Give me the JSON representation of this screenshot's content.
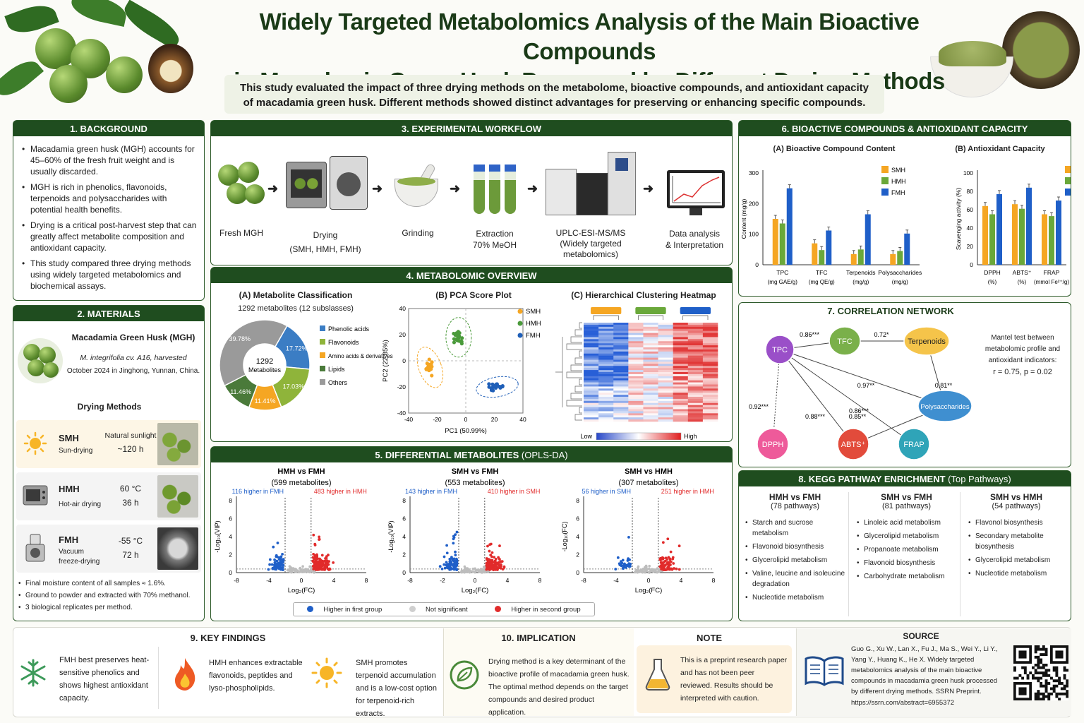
{
  "title": {
    "line1": "Widely Targeted Metabolomics Analysis of the Main Bioactive Compounds",
    "line2": "in Macadamia Green Husk Processed by Different Drying Methods"
  },
  "summary": {
    "line1": "This study evaluated the impact of three drying methods on the metabolome, bioactive compounds, and antioxidant capacity",
    "line2": "of macadamia green husk. Different methods showed distinct advantages for preserving or enhancing specific compounds."
  },
  "background": {
    "heading": "1. BACKGROUND",
    "bullets": [
      "Macadamia green husk (MGH) accounts for 45–60% of the fresh fruit weight and is usually discarded.",
      "MGH is rich in phenolics, flavonoids, terpenoids and polysaccharides with potential health benefits.",
      "Drying is a critical post-harvest step that can greatly affect metabolite composition and antioxidant capacity.",
      "This study compared three drying methods using widely targeted metabolomics and biochemical assays."
    ]
  },
  "materials": {
    "heading": "2. MATERIALS",
    "sample_title": "Macadamia Green Husk (MGH)",
    "sample_line1": "M. integrifolia cv. A16, harvested",
    "sample_line2": "October 2024 in Jinghong, Yunnan, China.",
    "drying_title": "Drying Methods",
    "methods": [
      {
        "code": "SMH",
        "name": "Sun-drying",
        "cond1": "Natural sunlight",
        "cond2": "~120 h"
      },
      {
        "code": "HMH",
        "name": "Hot-air drying",
        "cond1": "60 °C",
        "cond2": "36 h"
      },
      {
        "code": "FMH",
        "name": "Vacuum freeze-drying",
        "cond1": "-55 °C",
        "cond2": "72 h"
      }
    ],
    "notes": [
      "Final moisture content of all samples ≈ 1.6%.",
      "Ground to powder and extracted with 70% methanol.",
      "3 biological replicates per method."
    ]
  },
  "workflow": {
    "heading": "3. EXPERIMENTAL WORKFLOW",
    "steps": [
      {
        "l1": "Fresh MGH",
        "l2": "",
        "l3": ""
      },
      {
        "l1": "Drying",
        "l2": "(SMH, HMH, FMH)",
        "l3": ""
      },
      {
        "l1": "Grinding",
        "l2": "",
        "l3": ""
      },
      {
        "l1": "Extraction",
        "l2": "70% MeOH",
        "l3": ""
      },
      {
        "l1": "UPLC-ESI-MS/MS",
        "l2": "(Widely targeted",
        "l3": "metabolomics)"
      },
      {
        "l1": "Data analysis",
        "l2": "& Interpretation",
        "l3": ""
      }
    ]
  },
  "overview": {
    "heading": "4. METABOLOMIC OVERVIEW",
    "a_title": "(A) Metabolite Classification",
    "a_sub": "1292 metabolites (12 subslasses)",
    "center1": "1292",
    "center2": "Metabolites",
    "b_title": "(B) PCA Score Plot",
    "c_title": "(C) Hierarchical Clustering Heatmap",
    "c_low": "Low",
    "c_high": "High"
  },
  "differential": {
    "heading": "5. DIFFERENTIAL METABOLITES",
    "heading_suffix": "(OPLS-DA)",
    "legend": [
      "Higher in first group",
      "Not significant",
      "Higher in second group"
    ]
  },
  "bioactive": {
    "heading": "6. BIOACTIVE COMPOUNDS & ANTIOXIDANT CAPACITY",
    "a_title": "(A) Bioactive Compound Content",
    "b_title": "(B) Antioxidant Capacity"
  },
  "correlation": {
    "heading": "7. CORRELATION NETWORK",
    "note1": "Mantel test between",
    "note2": "metabolomic profile and",
    "note3": "antioxidant indicators:",
    "note4": "r = 0.75, p = 0.02",
    "nodes": [
      "TPC",
      "TFC",
      "Terpenoids",
      "Polysaccharides",
      "DPPH",
      "ABTS⁺",
      "FRAP"
    ],
    "edges": [
      "0.86***",
      "0.72*",
      "0.97**",
      "0.81**",
      "0.92***",
      "0.88***",
      "0.85**",
      "0.86***"
    ]
  },
  "kegg": {
    "heading": "8. KEGG PATHWAY ENRICHMENT",
    "heading_suffix": "(Top Pathways)",
    "groups": [
      {
        "title": "HMH vs FMH",
        "count": "(78 pathways)",
        "items": [
          "Starch and sucrose metabolism",
          "Flavonoid biosynthesis",
          "Glycerolipid metabolism",
          "Valine, leucine and isoleucine degradation",
          "Nucleotide metabolism"
        ]
      },
      {
        "title": "SMH vs FMH",
        "count": "(81 pathways)",
        "items": [
          "Linoleic acid metabolism",
          "Glycerolipid metabolism",
          "Propanoate metabolism",
          "Flavonoid biosynthesis",
          "Carbohydrate metabolism"
        ]
      },
      {
        "title": "SMH vs HMH",
        "count": "(54 pathways)",
        "items": [
          "Flavonol biosynthesis",
          "Secondary metabolite biosynthesis",
          "Glycerolipid metabolism",
          "Nucleotide metabolism"
        ]
      }
    ]
  },
  "findings": {
    "heading": "9. KEY FINDINGS",
    "f1": "FMH best preserves heat-sensitive phenolics and shows highest antioxidant capacity.",
    "f2": "HMH enhances extractable flavonoids, peptides and lyso-phospholipids.",
    "f3": "SMH promotes terpenoid accumulation and is a low-cost option for terpenoid-rich extracts."
  },
  "implication": {
    "heading": "10. IMPLICATION",
    "text": "Drying method is a key determinant of the bioactive profile of macadamia green husk. The optimal method depends on the target compounds and desired product application."
  },
  "note": {
    "heading": "NOTE",
    "text": "This is a preprint research paper and has not been peer reviewed. Results should be interpreted with caution."
  },
  "source": {
    "heading": "SOURCE",
    "text": "Guo G., Xu W., Lan X., Fu J., Ma S., Wei Y., Li Y., Yang Y., Huang K., He X. Widely targeted metabolomics analysis of the main bioactive compounds in macadamia green husk processed by different drying methods. SSRN Preprint.",
    "url": "https://ssrn.com/abstract=6955372"
  },
  "chart_data": [
    {
      "type": "pie",
      "title": "(A) Metabolite Classification",
      "labels": [
        "Phenolic acids",
        "Flavonoids",
        "Amino acids & derivatives",
        "Lipids",
        "Others"
      ],
      "values": [
        17.72,
        17.03,
        11.41,
        11.46,
        39.78
      ],
      "value_labels": [
        "17.72%",
        "17.03%",
        "11.41%",
        "11.46%",
        "39.78%"
      ],
      "colors": [
        "#3b7dc4",
        "#8fb43a",
        "#f5a623",
        "#4a7a3a",
        "#9a9a9a"
      ]
    },
    {
      "type": "scatter",
      "title": "(B) PCA Score Plot",
      "xlabel": "PC1 (50.99%)",
      "ylabel": "PC2 (22.85%)",
      "xlim": [
        -40,
        40
      ],
      "ylim": [
        -40,
        40
      ],
      "xticks": [
        "-40",
        "-20",
        "0",
        "20",
        "40"
      ],
      "yticks": [
        "40",
        "20",
        "0",
        "-20",
        "-40"
      ],
      "series": [
        {
          "name": "SMH",
          "color": "#f5a623",
          "center": [
            -25,
            -5
          ]
        },
        {
          "name": "HMH",
          "color": "#4a9a3a",
          "center": [
            -5,
            18
          ]
        },
        {
          "name": "FMH",
          "color": "#1f5fb8",
          "center": [
            22,
            -20
          ]
        }
      ]
    },
    {
      "type": "heatmap",
      "title": "(C) Hierarchical Clustering Heatmap",
      "columns": 9,
      "scale": [
        "Low",
        "High"
      ]
    },
    {
      "type": "scatter",
      "title": "HMH vs FMH",
      "subtitle": "(599 metabolites)",
      "left_label": "116 higher in FMH",
      "right_label": "483 higher in HMH",
      "down": 116,
      "up": 483,
      "xlabel": "Log₂(FC)",
      "ylabel": "-Log₁₀(VIP)",
      "xticks": [
        "-8",
        "-4",
        "0",
        "4",
        "8"
      ],
      "yticks": [
        "8",
        "6",
        "4",
        "2",
        "0"
      ]
    },
    {
      "type": "scatter",
      "title": "SMH vs FMH",
      "subtitle": "(553 metabolites)",
      "left_label": "143 higher in FMH",
      "right_label": "410 higher in SMH",
      "down": 143,
      "up": 410,
      "xlabel": "Log₂(FC)",
      "ylabel": "-Log₁₀(VIP)",
      "xticks": [
        "-8",
        "-2",
        "0",
        "4",
        "8"
      ],
      "yticks": [
        "8",
        "6",
        "4",
        "2",
        "0"
      ]
    },
    {
      "type": "scatter",
      "title": "SMH vs HMH",
      "subtitle": "(307 metabolites)",
      "left_label": "56 higher in SMH",
      "right_label": "251 higher in HMH",
      "down": 56,
      "up": 251,
      "xlabel": "Log₂(FC)",
      "ylabel": "-Log₁₀(FC)",
      "xticks": [
        "-8",
        "-4",
        "0",
        "4",
        "8"
      ],
      "yticks": [
        "8",
        "6",
        "4",
        "2",
        "0"
      ]
    },
    {
      "type": "bar",
      "title": "(A) Bioactive Compound Content",
      "ylabel": "Content (mg/g)",
      "ylim": [
        0,
        300
      ],
      "yticks": [
        "300",
        "200",
        "100",
        "0"
      ],
      "categories": [
        "TPC (mg GAE/g)",
        "TFC (mg QE/g)",
        "Terpenoids (mg/g)",
        "Polysaccharides (mg/g)"
      ],
      "cat_l1": [
        "TPC",
        "TFC",
        "Terpenoids",
        "Polysaccharides"
      ],
      "cat_l2": [
        "(mg GAE/g)",
        "(mg QE/g)",
        "(mg/g)",
        "(mg/g)"
      ],
      "series": [
        {
          "name": "SMH",
          "color": "#f5a623",
          "values": [
            150,
            70,
            35,
            35
          ]
        },
        {
          "name": "HMH",
          "color": "#6aa83a",
          "values": [
            135,
            48,
            50,
            45
          ]
        },
        {
          "name": "FMH",
          "color": "#1f5fc8",
          "values": [
            250,
            112,
            165,
            102
          ]
        }
      ]
    },
    {
      "type": "bar",
      "title": "(B) Antioxidant Capacity",
      "ylabel": "Scavenging activity (%)",
      "ylim": [
        0,
        100
      ],
      "yticks": [
        "100",
        "80",
        "60",
        "40",
        "20",
        "0"
      ],
      "categories": [
        "DPPH (%)",
        "ABTS⁺ (%)",
        "FRAP (mmol Fe²⁺/g)"
      ],
      "cat_l1": [
        "DPPH",
        "ABTS⁺",
        "FRAP"
      ],
      "cat_l2": [
        "(%)",
        "(%)",
        "(mmol Fe²⁺/g)"
      ],
      "series": [
        {
          "name": "SMH",
          "color": "#f5a623",
          "values": [
            64,
            66,
            55
          ]
        },
        {
          "name": "HMH",
          "color": "#6aa83a",
          "values": [
            55,
            61,
            53
          ]
        },
        {
          "name": "FMH",
          "color": "#1f5fc8",
          "values": [
            77,
            84,
            70
          ]
        }
      ]
    }
  ]
}
